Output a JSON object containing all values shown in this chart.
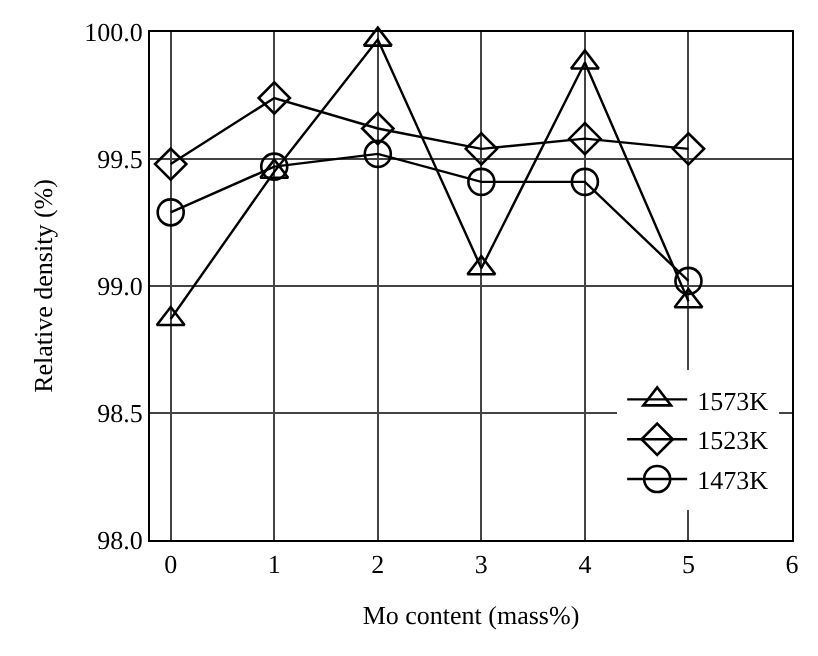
{
  "chart_data": {
    "type": "line",
    "xlabel": "Mo content (mass%)",
    "ylabel": "Relative density (%)",
    "x": [
      0,
      1,
      2,
      3,
      4,
      5
    ],
    "xlim": [
      -0.2,
      6
    ],
    "xticks": [
      0,
      1,
      2,
      3,
      4,
      5,
      6
    ],
    "ylim": [
      98,
      100
    ],
    "yticks": [
      {
        "value": 98,
        "label": "98.0"
      },
      {
        "value": 98.5,
        "label": "98.5"
      },
      {
        "value": 99,
        "label": "99.0"
      },
      {
        "value": 99.5,
        "label": "99.5"
      },
      {
        "value": 100,
        "label": "100.0"
      }
    ],
    "grid": true,
    "legend": "bottom right",
    "line_style": "solid",
    "series": [
      {
        "name": "1573K",
        "color": "#000000",
        "marker": "triangle",
        "values": [
          98.87,
          99.45,
          99.97,
          99.07,
          99.88,
          98.94
        ]
      },
      {
        "name": "1523K",
        "color": "#000000",
        "marker": "diamond",
        "values": [
          99.48,
          99.74,
          99.62,
          99.54,
          99.58,
          99.54
        ]
      },
      {
        "name": "1473K",
        "color": "#000000",
        "marker": "circle",
        "values": [
          99.29,
          99.47,
          99.52,
          99.41,
          99.41,
          99.02
        ]
      }
    ]
  }
}
